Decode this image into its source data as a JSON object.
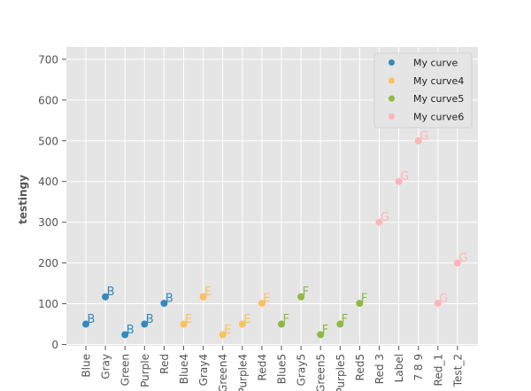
{
  "chart_data": {
    "type": "scatter",
    "title": "",
    "xlabel": "",
    "ylabel": "testingy",
    "ylim": [
      -10,
      730
    ],
    "yticks": [
      0,
      100,
      200,
      300,
      400,
      500,
      600,
      700
    ],
    "grid": true,
    "legend_position": "top-right",
    "categories": [
      "Blue",
      "Gray",
      "Green",
      "Purple",
      "Red",
      "Blue4",
      "Gray4",
      "Green4",
      "Purple4",
      "Red4",
      "Blue5",
      "Gray5",
      "Green5",
      "Purple5",
      "Red5",
      "Red 3",
      "Label",
      "7 8 9",
      "Red_1",
      "Test_2"
    ],
    "series": [
      {
        "name": "My curve",
        "color": "#348ABD",
        "marker_label": "B",
        "points": [
          {
            "x": "Blue",
            "y": 50
          },
          {
            "x": "Gray",
            "y": 117
          },
          {
            "x": "Green",
            "y": 24
          },
          {
            "x": "Purple",
            "y": 50
          },
          {
            "x": "Red",
            "y": 101
          }
        ]
      },
      {
        "name": "My curve4",
        "color": "#FBC15E",
        "marker_label": "E",
        "points": [
          {
            "x": "Blue4",
            "y": 50
          },
          {
            "x": "Gray4",
            "y": 117
          },
          {
            "x": "Green4",
            "y": 24
          },
          {
            "x": "Purple4",
            "y": 50
          },
          {
            "x": "Red4",
            "y": 101
          }
        ]
      },
      {
        "name": "My curve5",
        "color": "#8EBA42",
        "marker_label": "F",
        "points": [
          {
            "x": "Blue5",
            "y": 50
          },
          {
            "x": "Gray5",
            "y": 117
          },
          {
            "x": "Green5",
            "y": 24
          },
          {
            "x": "Purple5",
            "y": 50
          },
          {
            "x": "Red5",
            "y": 101
          }
        ]
      },
      {
        "name": "My curve6",
        "color": "#FFB5B8",
        "marker_label": "G",
        "points": [
          {
            "x": "Red 3",
            "y": 300
          },
          {
            "x": "Label",
            "y": 400
          },
          {
            "x": "7 8 9",
            "y": 500
          },
          {
            "x": "Red_1",
            "y": 101
          },
          {
            "x": "Test_2",
            "y": 200
          }
        ]
      }
    ]
  }
}
